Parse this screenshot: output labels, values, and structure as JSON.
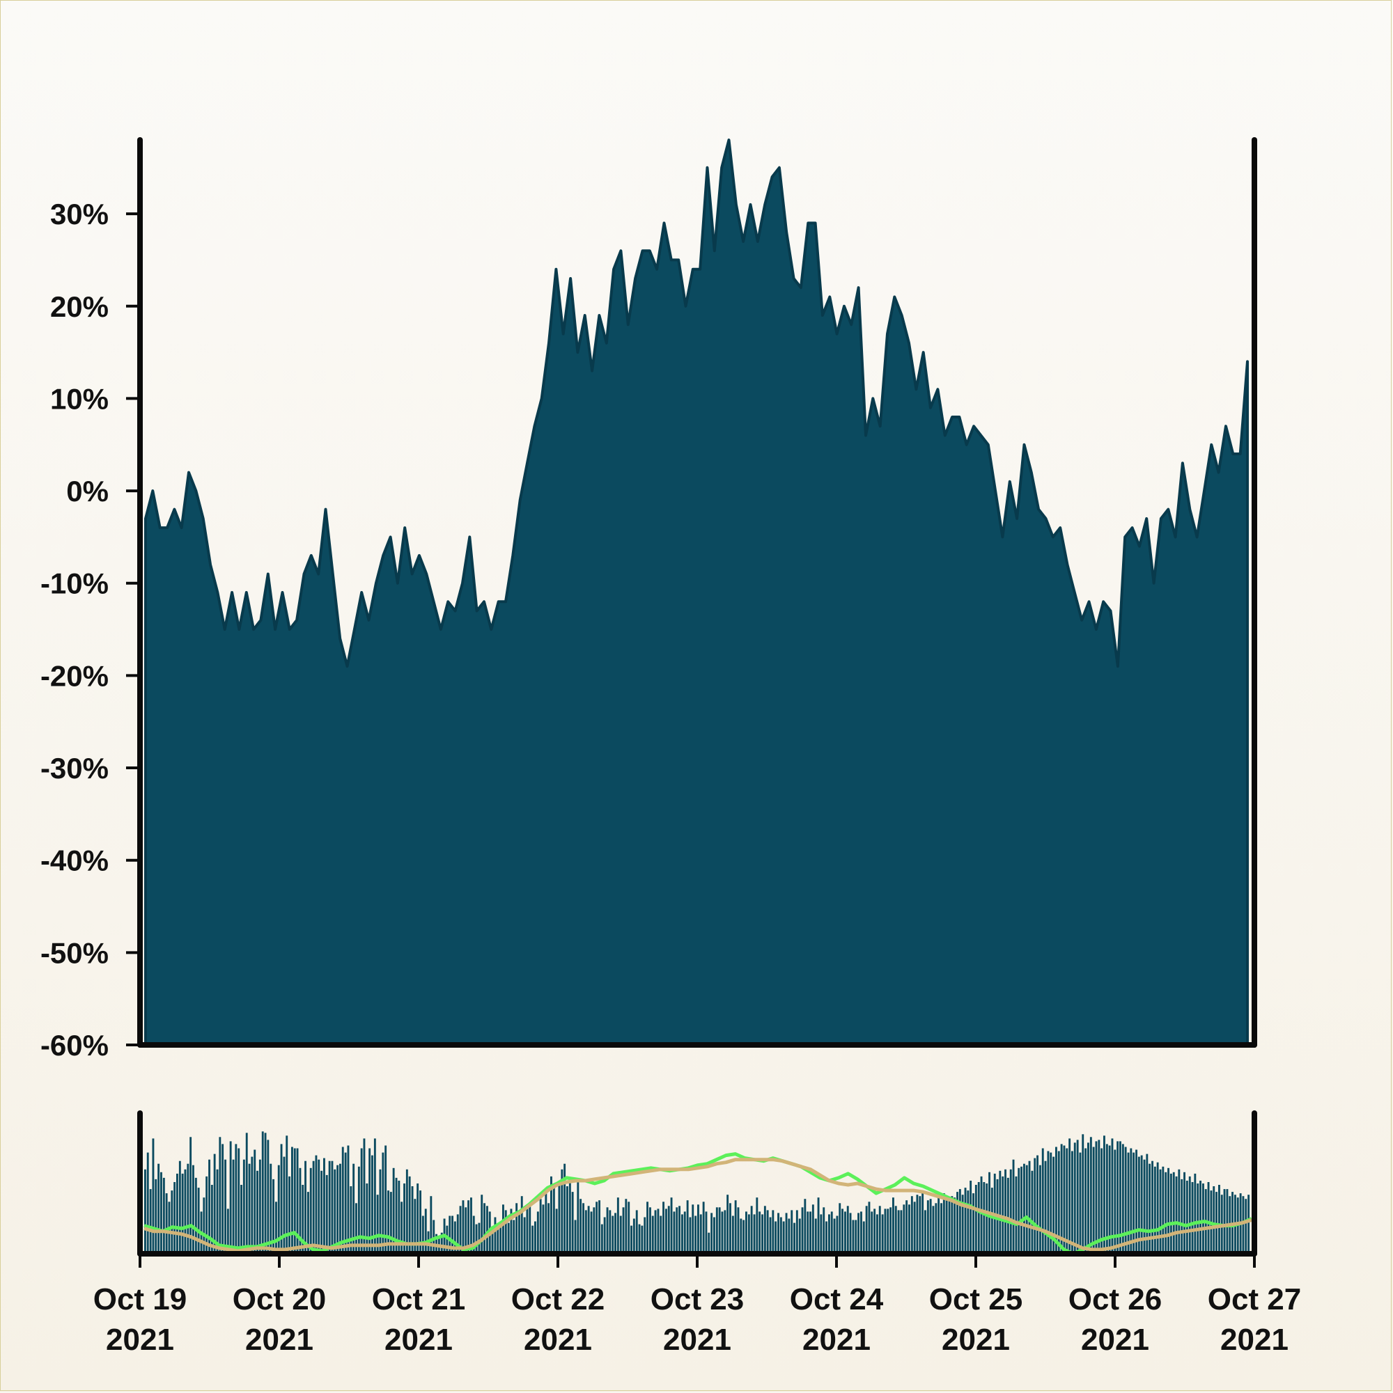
{
  "chart_data": {
    "type": "area",
    "x_ticks": [
      "Oct 19\n2021",
      "Oct 20\n2021",
      "Oct 21\n2021",
      "Oct 22\n2021",
      "Oct 23\n2021",
      "Oct 24\n2021",
      "Oct 25\n2021",
      "Oct 26\n2021",
      "Oct 27\n2021"
    ],
    "x_start": "2021-10-19",
    "x_end": "2021-10-27",
    "ylim": [
      -60,
      38
    ],
    "y_ticks": [
      30,
      20,
      10,
      0,
      -10,
      -20,
      -30,
      -40,
      -50,
      -60
    ],
    "y_tick_format": "percent",
    "grid": false,
    "colors": {
      "area": "#0b4a5f",
      "area_edge": "#083a4c",
      "volume_bars": "#0b4a5f",
      "fast_line": "#5cf05a",
      "slow_line": "#d2b478",
      "axis": "#0a0a0a"
    },
    "series": [
      {
        "values": [
          -3,
          0,
          -4,
          -4,
          -2,
          -4,
          2,
          0,
          -3,
          -8,
          -11,
          -15,
          -11,
          -15,
          -11,
          -15,
          -14,
          -9,
          -15,
          -11,
          -15,
          -14,
          -9,
          -7,
          -9,
          -2,
          -9,
          -16,
          -19,
          -15,
          -11,
          -14,
          -10,
          -7,
          -5,
          -10,
          -4,
          -9,
          -7,
          -9,
          -12,
          -15,
          -12,
          -13,
          -10,
          -5,
          -13,
          -12,
          -15,
          -12,
          -12,
          -7,
          -1,
          3,
          7,
          10,
          16,
          24,
          17,
          23,
          15,
          19,
          13,
          19,
          16,
          24,
          26,
          18,
          23,
          26,
          26,
          24,
          29,
          25,
          25,
          20,
          24,
          24,
          35,
          26,
          35,
          38,
          31,
          27,
          31,
          27,
          31,
          34,
          35,
          28,
          23,
          22,
          29,
          29,
          19,
          21,
          17,
          20,
          18,
          22,
          6,
          10,
          7,
          17,
          21,
          19,
          16,
          11,
          15,
          9,
          11,
          6,
          8,
          8,
          5,
          7,
          6,
          5,
          0,
          -5,
          1,
          -3,
          5,
          2,
          -2,
          -3,
          -5,
          -4,
          -8,
          -11,
          -14,
          -12,
          -15,
          -12,
          -13,
          -19,
          -5,
          -4,
          -6,
          -3,
          -10,
          -3,
          -2,
          -5,
          3,
          -2,
          -5,
          0,
          5,
          2,
          7,
          4,
          4,
          14
        ]
      }
    ],
    "volume": {
      "ylim": [
        0,
        100
      ],
      "bars": [
        60,
        72,
        46,
        82,
        53,
        64,
        58,
        54,
        43,
        37,
        45,
        51,
        57,
        66,
        57,
        60,
        64,
        83,
        63,
        54,
        47,
        30,
        40,
        55,
        67,
        49,
        71,
        60,
        83,
        78,
        67,
        32,
        80,
        67,
        78,
        75,
        49,
        67,
        86,
        64,
        69,
        74,
        59,
        67,
        87,
        86,
        81,
        64,
        53,
        37,
        63,
        78,
        69,
        84,
        55,
        76,
        75,
        75,
        61,
        49,
        66,
        44,
        61,
        66,
        70,
        67,
        59,
        68,
        56,
        66,
        66,
        60,
        63,
        64,
        76,
        72,
        77,
        48,
        64,
        36,
        62,
        75,
        82,
        50,
        75,
        70,
        82,
        42,
        60,
        72,
        77,
        45,
        44,
        61,
        54,
        52,
        37,
        50,
        60,
        55,
        48,
        39,
        50,
        45,
        27,
        32,
        16,
        41,
        24,
        14,
        12,
        15,
        25,
        20,
        27,
        27,
        23,
        28,
        34,
        38,
        33,
        38,
        40,
        27,
        21,
        22,
        42,
        36,
        34,
        30,
        19,
        26,
        20,
        23,
        35,
        31,
        22,
        32,
        24,
        36,
        31,
        41,
        26,
        32,
        34,
        20,
        23,
        30,
        39,
        35,
        45,
        36,
        55,
        47,
        32,
        52,
        60,
        64,
        48,
        53,
        44,
        24,
        52,
        39,
        36,
        31,
        34,
        30,
        33,
        37,
        38,
        21,
        26,
        33,
        31,
        27,
        29,
        40,
        27,
        33,
        39,
        37,
        20,
        25,
        31,
        21,
        20,
        26,
        37,
        33,
        27,
        31,
        32,
        27,
        37,
        32,
        34,
        40,
        30,
        33,
        34,
        28,
        30,
        38,
        26,
        35,
        27,
        35,
        28,
        37,
        30,
        15,
        29,
        26,
        33,
        33,
        30,
        31,
        42,
        36,
        27,
        38,
        33,
        25,
        24,
        30,
        28,
        34,
        28,
        40,
        30,
        28,
        34,
        31,
        26,
        31,
        23,
        29,
        26,
        23,
        29,
        25,
        31,
        22,
        31,
        25,
        33,
        39,
        30,
        30,
        35,
        25,
        40,
        28,
        33,
        23,
        28,
        30,
        25,
        27,
        36,
        32,
        30,
        34,
        29,
        24,
        24,
        29,
        30,
        23,
        34,
        37,
        30,
        32,
        28,
        34,
        28,
        32,
        32,
        33,
        40,
        34,
        31,
        31,
        35,
        38,
        35,
        41,
        37,
        42,
        41,
        45,
        31,
        38,
        39,
        34,
        36,
        41,
        36,
        43,
        39,
        40,
        41,
        40,
        44,
        46,
        42,
        47,
        45,
        52,
        43,
        49,
        51,
        55,
        51,
        50,
        58,
        47,
        57,
        53,
        59,
        55,
        60,
        54,
        60,
        67,
        55,
        61,
        62,
        64,
        63,
        66,
        59,
        68,
        70,
        63,
        75,
        66,
        73,
        72,
        69,
        76,
        73,
        78,
        77,
        75,
        82,
        73,
        79,
        81,
        72,
        85,
        75,
        79,
        83,
        76,
        80,
        81,
        75,
        84,
        78,
        77,
        82,
        74,
        80,
        80,
        78,
        76,
        72,
        75,
        72,
        74,
        69,
        70,
        67,
        71,
        64,
        66,
        62,
        65,
        60,
        62,
        58,
        61,
        57,
        58,
        55,
        60,
        53,
        58,
        52,
        55,
        51,
        57,
        50,
        52,
        50,
        46,
        51,
        45,
        48,
        44,
        49,
        42,
        46,
        46,
        41,
        44,
        42,
        40,
        43,
        41,
        39,
        42
      ]
    },
    "fast_line": [
      20,
      18,
      16,
      19,
      18,
      20,
      15,
      11,
      6,
      5,
      4,
      5,
      5,
      7,
      9,
      13,
      15,
      8,
      3,
      2,
      5,
      8,
      10,
      12,
      11,
      13,
      12,
      9,
      7,
      7,
      8,
      11,
      13,
      8,
      3,
      4,
      10,
      18,
      22,
      27,
      30,
      35,
      41,
      47,
      50,
      54,
      53,
      52,
      50,
      52,
      57,
      58,
      59,
      60,
      61,
      60,
      59,
      60,
      61,
      63,
      64,
      67,
      70,
      71,
      68,
      67,
      66,
      68,
      66,
      64,
      62,
      58,
      54,
      52,
      54,
      57,
      53,
      48,
      43,
      46,
      49,
      54,
      50,
      48,
      45,
      42,
      39,
      36,
      34,
      30,
      27,
      25,
      23,
      21,
      26,
      20,
      15,
      10,
      3,
      0,
      3,
      7,
      10,
      12,
      13,
      15,
      17,
      16,
      17,
      21,
      22,
      20,
      22,
      23,
      21,
      20,
      20,
      22,
      25
    ],
    "slow_line": [
      18,
      16,
      16,
      15,
      14,
      12,
      9,
      6,
      4,
      3,
      2,
      3,
      4,
      4,
      3,
      3,
      4,
      5,
      6,
      5,
      4,
      5,
      6,
      6,
      6,
      6,
      7,
      7,
      7,
      7,
      7,
      6,
      5,
      4,
      4,
      6,
      10,
      15,
      20,
      25,
      29,
      34,
      39,
      45,
      49,
      51,
      52,
      52,
      53,
      54,
      55,
      56,
      57,
      58,
      59,
      60,
      60,
      60,
      60,
      61,
      62,
      64,
      65,
      67,
      67,
      67,
      67,
      67,
      66,
      64,
      62,
      60,
      56,
      52,
      50,
      49,
      50,
      48,
      46,
      45,
      45,
      45,
      45,
      44,
      42,
      40,
      38,
      35,
      33,
      31,
      29,
      27,
      25,
      22,
      20,
      18,
      16,
      13,
      10,
      7,
      4,
      3,
      3,
      4,
      6,
      8,
      10,
      11,
      12,
      13,
      15,
      16,
      17,
      18,
      19,
      20,
      21,
      22,
      24
    ]
  }
}
